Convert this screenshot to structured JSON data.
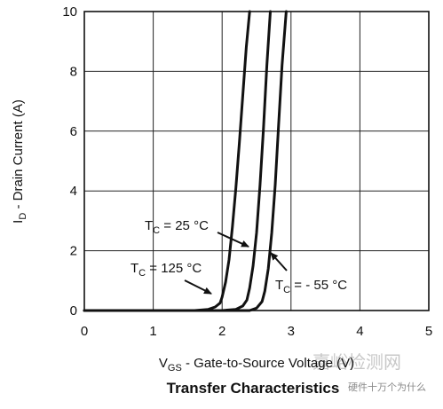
{
  "chart_data": {
    "type": "line",
    "title": "Transfer Characteristics",
    "xlabel": {
      "main": "V",
      "sub": "GS",
      "rest": " - Gate-to-Source Voltage (V)"
    },
    "ylabel": {
      "main": "I",
      "sub": "D",
      "rest": " - Drain Current (A)"
    },
    "xlim": [
      0,
      5
    ],
    "ylim": [
      0,
      10
    ],
    "xticks": [
      "0",
      "1",
      "2",
      "3",
      "4",
      "5"
    ],
    "yticks": [
      "0",
      "2",
      "4",
      "6",
      "8",
      "10"
    ],
    "grid": true,
    "legend": "none",
    "series": [
      {
        "name": "TC = 125 °C",
        "label": {
          "main": "T",
          "sub": "C",
          "rest": " = 125 °C"
        },
        "x": [
          0.0,
          1.0,
          1.6,
          1.8,
          1.9,
          1.97,
          2.0,
          2.05,
          2.1,
          2.15,
          2.2,
          2.25,
          2.3,
          2.35,
          2.4
        ],
        "y": [
          0.0,
          0.0,
          0.0,
          0.04,
          0.12,
          0.25,
          0.45,
          0.95,
          1.7,
          2.8,
          4.1,
          5.6,
          7.2,
          8.8,
          10.0
        ]
      },
      {
        "name": "TC = 25 °C",
        "label": {
          "main": "T",
          "sub": "C",
          "rest": " = 25 °C"
        },
        "x": [
          0.0,
          1.0,
          2.0,
          2.2,
          2.3,
          2.36,
          2.4,
          2.45,
          2.5,
          2.55,
          2.6,
          2.65,
          2.7
        ],
        "y": [
          0.0,
          0.0,
          0.0,
          0.04,
          0.15,
          0.35,
          0.75,
          1.5,
          2.6,
          4.2,
          6.1,
          8.2,
          10.0
        ]
      },
      {
        "name": "TC = - 55 °C",
        "label": {
          "main": "T",
          "sub": "C",
          "rest": " = - 55 °C"
        },
        "x": [
          0.0,
          1.0,
          2.0,
          2.4,
          2.5,
          2.58,
          2.62,
          2.67,
          2.72,
          2.77,
          2.82,
          2.87,
          2.93
        ],
        "y": [
          0.0,
          0.0,
          0.0,
          0.0,
          0.08,
          0.3,
          0.65,
          1.4,
          2.6,
          4.2,
          6.2,
          8.2,
          10.0
        ]
      }
    ]
  },
  "watermark": {
    "large": "嘉峪检测网",
    "small": "硬件十万个为什么"
  }
}
